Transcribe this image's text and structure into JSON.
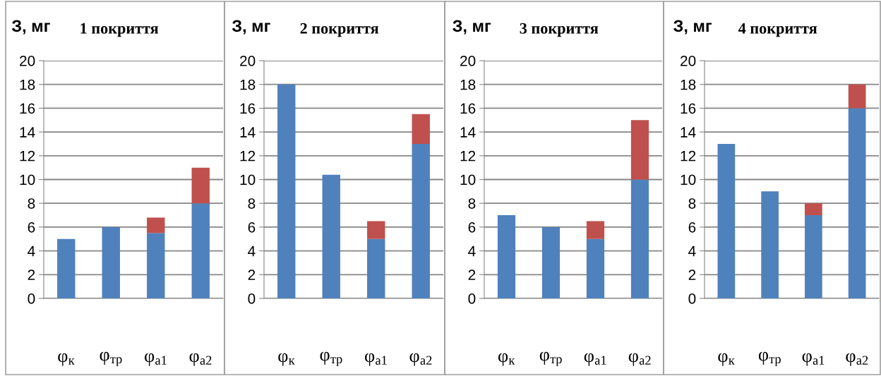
{
  "chart_data": [
    {
      "type": "bar",
      "stacked": true,
      "title": "1 покриття",
      "ylabel": "З, мг",
      "categories": [
        "φ$_{к}$",
        "φ$_{тр}$",
        "φ$_{а1}$",
        "φ$_{а2}$"
      ],
      "ylim": [
        0,
        20
      ],
      "yticks": [
        0,
        2,
        4,
        6,
        8,
        10,
        12,
        14,
        16,
        18,
        20
      ],
      "grid": "y",
      "legend": false,
      "series": [
        {
          "color": "#4f81bd",
          "values": [
            5,
            6,
            5.5,
            8
          ]
        },
        {
          "color": "#c0504d",
          "values": [
            null,
            null,
            1.3,
            3
          ]
        }
      ]
    },
    {
      "type": "bar",
      "stacked": true,
      "title": "2 покриття",
      "ylabel": "З, мг",
      "categories": [
        "φ$_{к}$",
        "φ$_{тр}$",
        "φ$_{а1}$",
        "φ$_{а2}$"
      ],
      "ylim": [
        0,
        20
      ],
      "yticks": [
        0,
        2,
        4,
        6,
        8,
        10,
        12,
        14,
        16,
        18,
        20
      ],
      "grid": "y",
      "legend": false,
      "series": [
        {
          "color": "#4f81bd",
          "values": [
            18,
            10.4,
            5,
            13
          ]
        },
        {
          "color": "#c0504d",
          "values": [
            null,
            null,
            1.5,
            2.5
          ]
        }
      ]
    },
    {
      "type": "bar",
      "stacked": true,
      "title": "3 покриття",
      "ylabel": "З, мг",
      "categories": [
        "φ$_{к}$",
        "φ$_{тр}$",
        "φ$_{а1}$",
        "φ$_{а2}$"
      ],
      "ylim": [
        0,
        20
      ],
      "yticks": [
        0,
        2,
        4,
        6,
        8,
        10,
        12,
        14,
        16,
        18,
        20
      ],
      "grid": "y",
      "legend": false,
      "series": [
        {
          "color": "#4f81bd",
          "values": [
            7,
            6,
            5,
            10
          ]
        },
        {
          "color": "#c0504d",
          "values": [
            null,
            null,
            1.5,
            5
          ]
        }
      ]
    },
    {
      "type": "bar",
      "stacked": true,
      "title": "4 покриття",
      "ylabel": "З, мг",
      "categories": [
        "φ$_{к}$",
        "φ$_{тр}$",
        "φ$_{а1}$",
        "φ$_{а2}$"
      ],
      "ylim": [
        0,
        20
      ],
      "yticks": [
        0,
        2,
        4,
        6,
        8,
        10,
        12,
        14,
        16,
        18,
        20
      ],
      "grid": "y",
      "legend": false,
      "series": [
        {
          "color": "#4f81bd",
          "values": [
            13,
            9,
            7,
            16
          ]
        },
        {
          "color": "#c0504d",
          "values": [
            null,
            null,
            1,
            2
          ]
        }
      ]
    }
  ]
}
